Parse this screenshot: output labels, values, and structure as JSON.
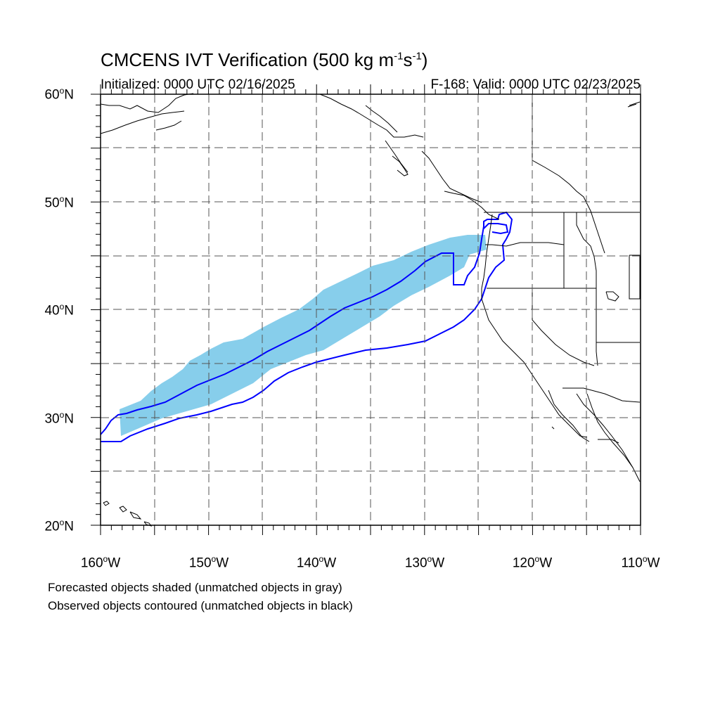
{
  "title": "CMCENS IVT Verification (500 kg m",
  "title_sup1": "-1",
  "title_mid": "s",
  "title_sup2": "-1",
  "title_end": ")",
  "initialized": "Initialized: 0000 UTC 02/16/2025",
  "valid": "F-168: Valid: 0000 UTC 02/23/2025",
  "lat_labels": [
    {
      "value": "60",
      "suffix": "N"
    },
    {
      "value": "50",
      "suffix": "N"
    },
    {
      "value": "40",
      "suffix": "N"
    },
    {
      "value": "30",
      "suffix": "N"
    },
    {
      "value": "20",
      "suffix": "N"
    }
  ],
  "lon_labels": [
    {
      "value": "160",
      "suffix": "W"
    },
    {
      "value": "150",
      "suffix": "W"
    },
    {
      "value": "140",
      "suffix": "W"
    },
    {
      "value": "130",
      "suffix": "W"
    },
    {
      "value": "120",
      "suffix": "W"
    },
    {
      "value": "110",
      "suffix": "W"
    }
  ],
  "degree_symbol": "o",
  "note_forecast": "Forecasted objects shaded (unmatched objects in gray)",
  "note_observed": "Observed objects contoured (unmatched objects in black)",
  "map": {
    "lon_range": [
      -160,
      -110
    ],
    "lat_range": [
      20,
      60
    ],
    "forecast_color": "#87ceeb",
    "observed_color": "#0000ff",
    "coast_color": "#000000"
  }
}
